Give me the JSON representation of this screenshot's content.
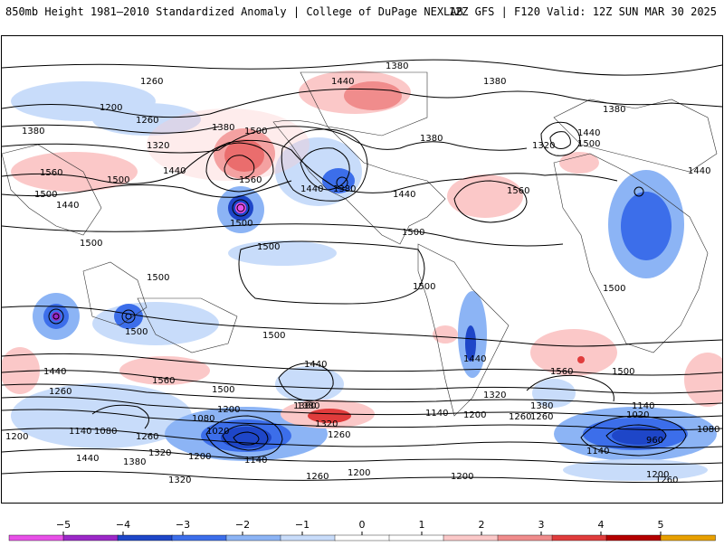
{
  "header": {
    "title_left": "850mb Height 1981–2010 Standardized Anomaly | College of DuPage NEXLAB",
    "title_right": "12Z GFS | F120 Valid: 12Z SUN MAR 30 2025"
  },
  "map": {
    "contour_labels": [
      {
        "text": "1260"
      },
      {
        "text": "1200"
      },
      {
        "text": "1260"
      },
      {
        "text": "1380"
      },
      {
        "text": "1320"
      },
      {
        "text": "1380"
      },
      {
        "text": "1500"
      },
      {
        "text": "1560"
      },
      {
        "text": "1440"
      },
      {
        "text": "1500"
      },
      {
        "text": "1560"
      },
      {
        "text": "1500"
      },
      {
        "text": "1440"
      },
      {
        "text": "1500"
      },
      {
        "text": "1440"
      },
      {
        "text": "1380"
      },
      {
        "text": "1380"
      },
      {
        "text": "1440"
      },
      {
        "text": "1380"
      },
      {
        "text": "1380"
      },
      {
        "text": "1440"
      },
      {
        "text": "1560"
      },
      {
        "text": "1320"
      },
      {
        "text": "1500"
      },
      {
        "text": "1380"
      },
      {
        "text": "1440"
      },
      {
        "text": "1500"
      },
      {
        "text": "1500"
      },
      {
        "text": "1500"
      },
      {
        "text": "1500"
      },
      {
        "text": "1500"
      },
      {
        "text": "1500"
      },
      {
        "text": "1500"
      },
      {
        "text": "1500"
      },
      {
        "text": "1440"
      },
      {
        "text": "1560"
      },
      {
        "text": "1500"
      },
      {
        "text": "1440"
      },
      {
        "text": "1260"
      },
      {
        "text": "1560"
      },
      {
        "text": "1500"
      },
      {
        "text": "1440"
      },
      {
        "text": "1380"
      },
      {
        "text": "1080"
      },
      {
        "text": "1200"
      },
      {
        "text": "1140"
      },
      {
        "text": "1080"
      },
      {
        "text": "1020"
      },
      {
        "text": "1260"
      },
      {
        "text": "1320"
      },
      {
        "text": "1200"
      },
      {
        "text": "1140"
      },
      {
        "text": "1440"
      },
      {
        "text": "1380"
      },
      {
        "text": "1320"
      },
      {
        "text": "1260"
      },
      {
        "text": "1200"
      },
      {
        "text": "1440"
      },
      {
        "text": "1380"
      },
      {
        "text": "1320"
      },
      {
        "text": "1260"
      },
      {
        "text": "1140"
      },
      {
        "text": "1200"
      },
      {
        "text": "1320"
      },
      {
        "text": "1380"
      },
      {
        "text": "1260"
      },
      {
        "text": "1140"
      },
      {
        "text": "1020"
      },
      {
        "text": "1080"
      },
      {
        "text": "960"
      },
      {
        "text": "1140"
      },
      {
        "text": "1200"
      },
      {
        "text": "1260"
      },
      {
        "text": "1200"
      },
      {
        "text": "1260"
      },
      {
        "text": "1200"
      }
    ]
  },
  "legend": {
    "ticks": [
      {
        "label": "−5",
        "value": -5
      },
      {
        "label": "−4",
        "value": -4
      },
      {
        "label": "−3",
        "value": -3
      },
      {
        "label": "−2",
        "value": -2
      },
      {
        "label": "−1",
        "value": -1
      },
      {
        "label": "0",
        "value": 0
      },
      {
        "label": "1",
        "value": 1
      },
      {
        "label": "2",
        "value": 2
      },
      {
        "label": "3",
        "value": 3
      },
      {
        "label": "4",
        "value": 4
      },
      {
        "label": "5",
        "value": 5
      }
    ],
    "colors": [
      "#e850e8",
      "#9c28c8",
      "#1e46c8",
      "#3c6eea",
      "#8cb4f5",
      "#c8dcfa",
      "#ffffff",
      "#ffffff",
      "#fbc8c8",
      "#f08c8c",
      "#e03c3c",
      "#b40000",
      "#e8a000"
    ]
  }
}
